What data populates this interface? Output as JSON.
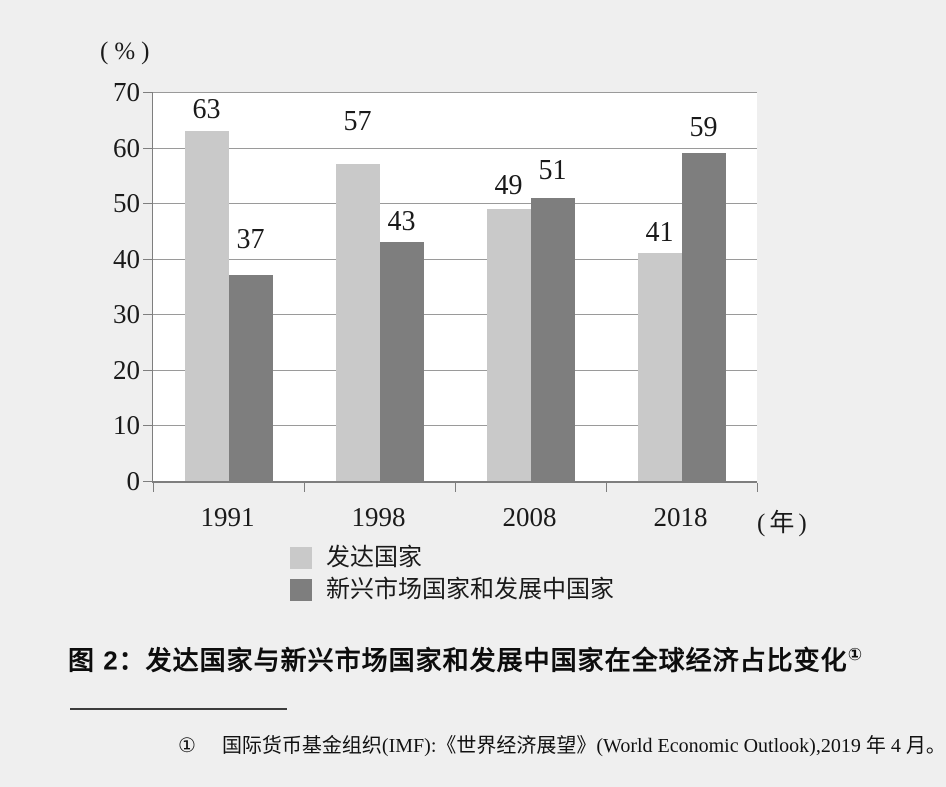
{
  "page": {
    "background": "#efefef"
  },
  "chart": {
    "y_unit_label": "(%)",
    "x_unit_label": "(年)"
  },
  "chart_data": {
    "type": "bar",
    "categories": [
      "1991",
      "1998",
      "2008",
      "2018"
    ],
    "series": [
      {
        "name": "发达国家",
        "color": "#c9c9c9",
        "values": [
          63,
          57,
          49,
          41
        ]
      },
      {
        "name": "新兴市场国家和发展中国家",
        "color": "#7e7e7e",
        "values": [
          37,
          43,
          51,
          59
        ]
      }
    ],
    "title": "",
    "xlabel": "(年)",
    "ylabel": "(%)",
    "ylim": [
      0,
      70
    ],
    "ytick_step": 10,
    "grid": true,
    "legend_position": "bottom"
  },
  "caption": {
    "text": "图 2：发达国家与新兴市场国家和发展中国家在全球经济占比变化",
    "footnote_ref": "①"
  },
  "footnote": {
    "marker": "①",
    "text": "国际货币基金组织(IMF):《世界经济展望》(World Economic Outlook),2019 年 4 月。"
  }
}
